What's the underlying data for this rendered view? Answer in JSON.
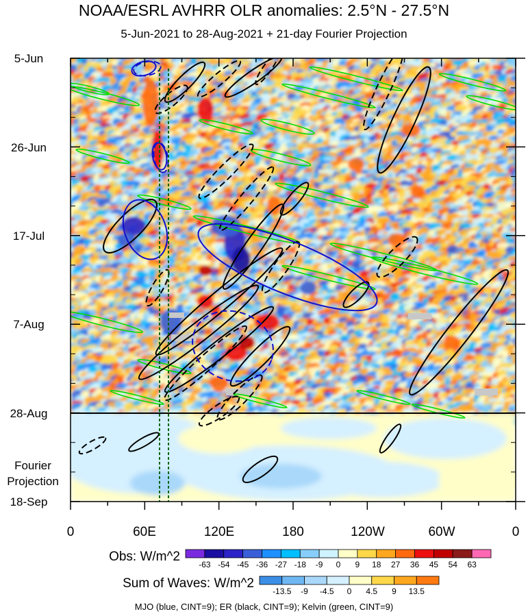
{
  "chart_data": {
    "type": "heatmap",
    "title": "NOAA/ESRL AVHRR OLR anomalies: 2.5°N - 27.5°N",
    "subtitle": "5-Jun-2021 to 28-Aug-2021 + 21-day Fourier Projection",
    "y_ticks": [
      "5-Jun",
      "26-Jun",
      "17-Jul",
      "7-Aug",
      "28-Aug",
      "18-Sep"
    ],
    "projection_label_1": "Fourier",
    "projection_label_2": "Projection",
    "x_ticks": [
      "0",
      "60E",
      "120E",
      "180",
      "120W",
      "60W",
      "0"
    ],
    "colorbars": [
      {
        "title": "Obs: W/m^2",
        "ticks": [
          "-63",
          "-54",
          "-45",
          "-36",
          "-27",
          "-18",
          "-9",
          "0",
          "9",
          "18",
          "27",
          "36",
          "45",
          "54",
          "63"
        ],
        "colors": [
          "#7a2be0",
          "#1a0fa0",
          "#2c24c8",
          "#3a5fd8",
          "#1e90ff",
          "#00bfff",
          "#87cefa",
          "#cff3ff",
          "#fffec8",
          "#ffd84a",
          "#ffa81f",
          "#ff6a10",
          "#ee1010",
          "#c00000",
          "#8b1a1a",
          "#ff69b4"
        ]
      },
      {
        "title": "Sum of Waves: W/m^2",
        "ticks": [
          "-13.5",
          "-9",
          "-4.5",
          "0",
          "4.5",
          "9",
          "13.5"
        ],
        "colors": [
          "#3a8ee6",
          "#6fb7f2",
          "#a9d8fa",
          "#d5f0ff",
          "#fffec8",
          "#ffd84a",
          "#ffa81f",
          "#ff7a10"
        ]
      }
    ],
    "footer": "MJO (blue, CINT=9); ER (black, CINT=9); Kelvin (green, CINT=9)",
    "colors": {
      "mjo": "#1010cc",
      "er": "#000000",
      "kelvin": "#00dd00",
      "vertical_lines": "#006400"
    }
  }
}
